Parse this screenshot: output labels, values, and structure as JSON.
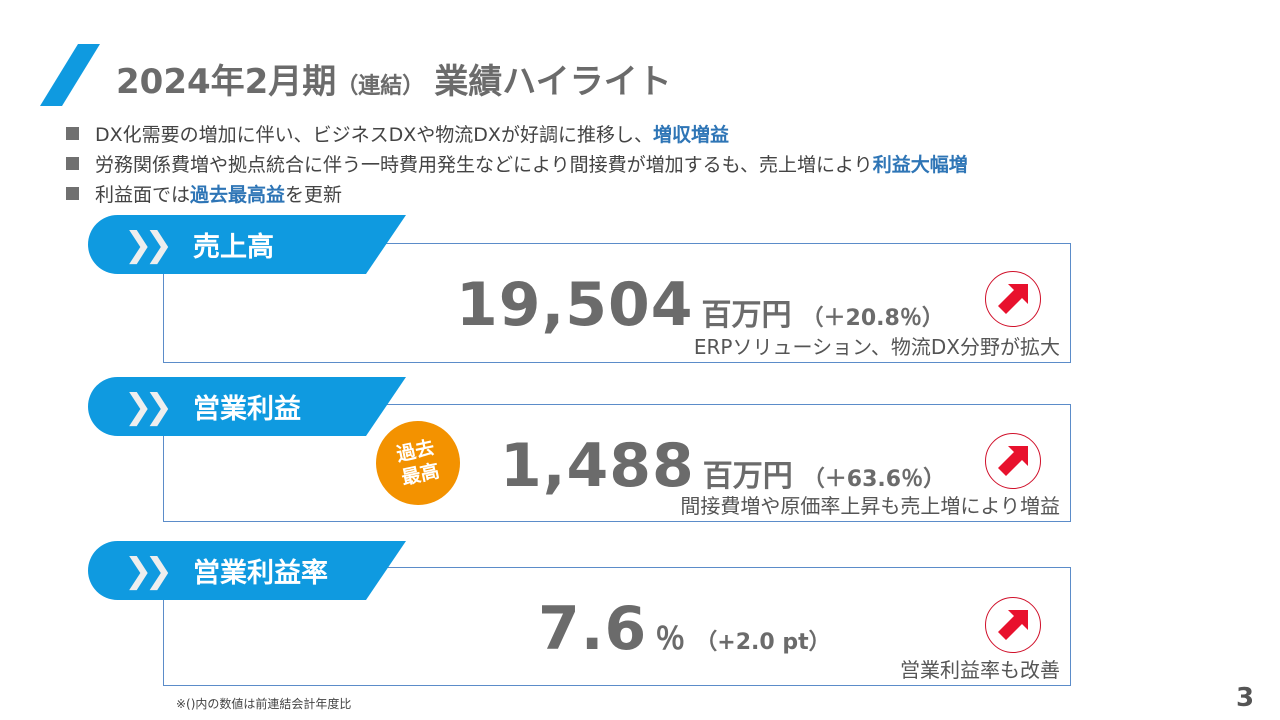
{
  "title": {
    "main": "2024年2月期",
    "sub": "（連結）",
    "tail": "業績ハイライト"
  },
  "bullets": [
    {
      "text": "DX化需要の増加に伴い、ビジネスDXや物流DXが好調に推移し、",
      "highlight": "増収増益",
      "after": ""
    },
    {
      "text": "労務関係費増や拠点統合に伴う一時費用発生などにより間接費が増加するも、売上増により",
      "highlight": "利益大幅増",
      "after": ""
    },
    {
      "text": "利益面では",
      "highlight": "過去最高益",
      "after": "を更新"
    }
  ],
  "cards": [
    {
      "label": "売上高",
      "value": "19,504",
      "unit": "百万円",
      "change": "（＋20.8％）",
      "note": "ERPソリューション、物流DX分野が拡大",
      "trend": "up-arrow-icon"
    },
    {
      "label": "営業利益",
      "value": "1,488",
      "unit": "百万円",
      "change": "（＋63.6％）",
      "note": "間接費増や原価率上昇も売上増により増益",
      "trend": "up-arrow-icon",
      "badge": "過去\n最高"
    },
    {
      "label": "営業利益率",
      "value": "7.6",
      "unit": "％",
      "change": "（+2.0 pt）",
      "note": "営業利益率も改善",
      "trend": "up-arrow-icon"
    }
  ],
  "footnote": "※()内の数値は前連結会計年度比",
  "page_number": "3",
  "colors": {
    "accent": "#0f9ae0",
    "highlight": "#2e75b6",
    "badge": "#f39200",
    "arrow": "#e8112d"
  }
}
